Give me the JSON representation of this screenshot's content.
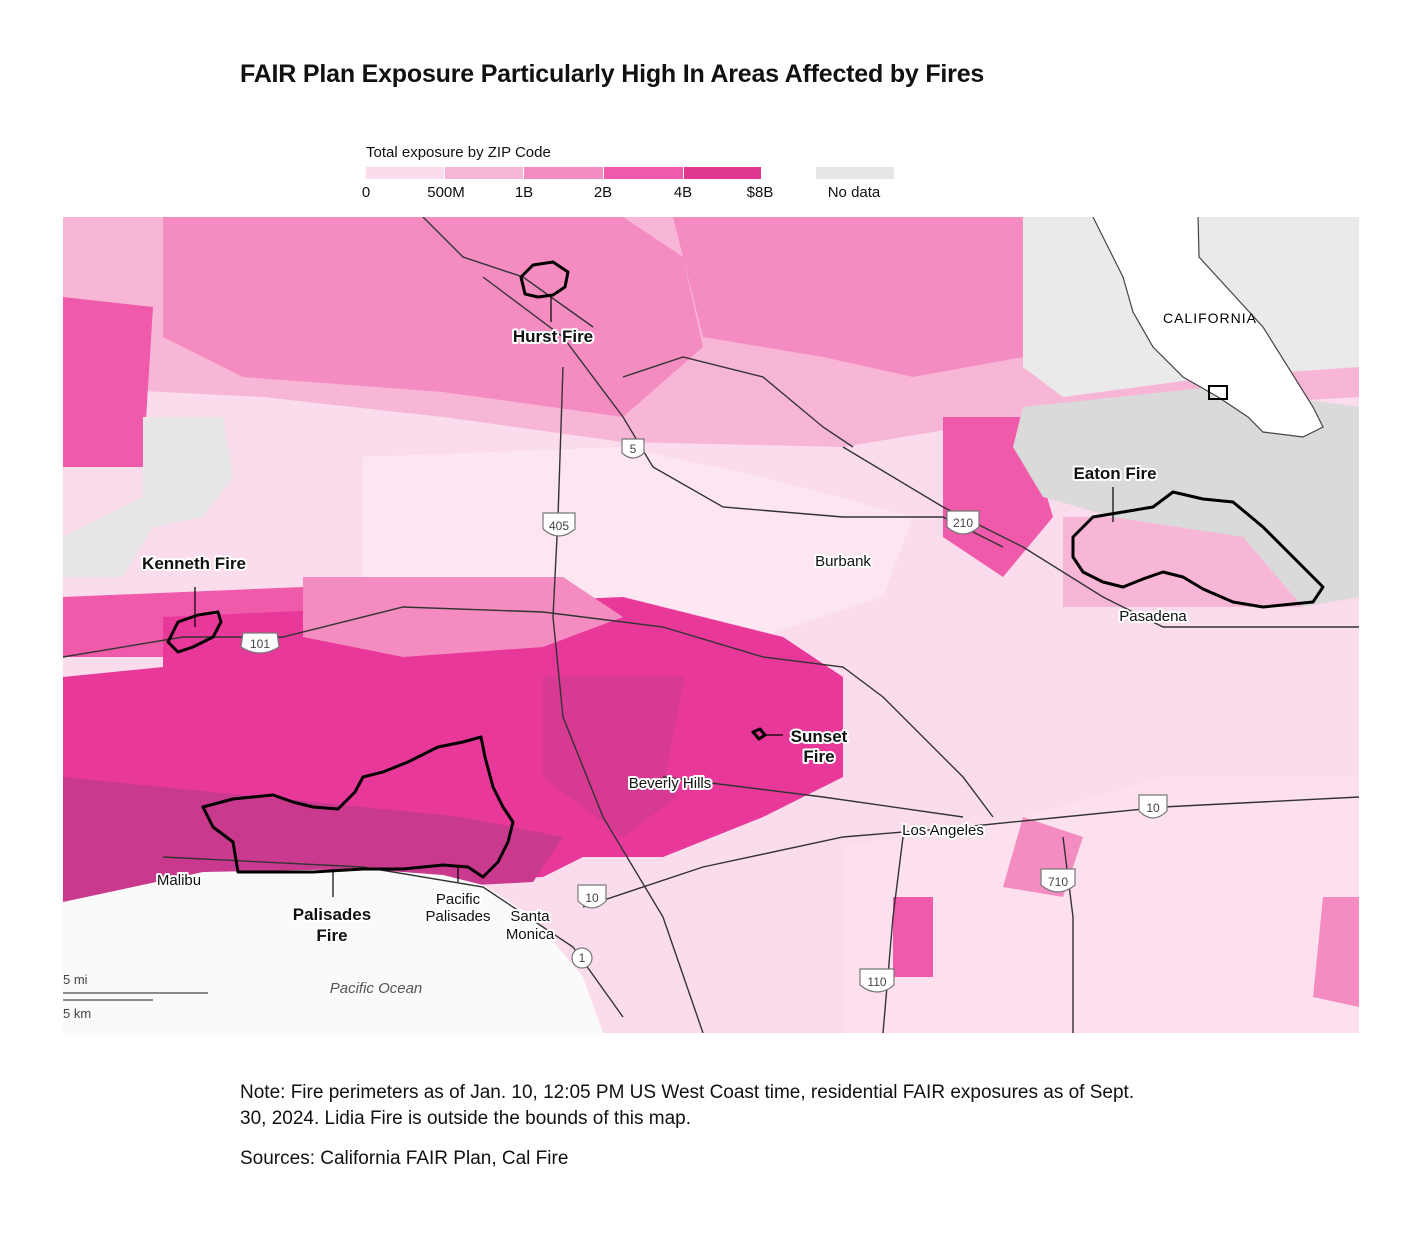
{
  "title": "FAIR Plan Exposure Particularly High In Areas Affected by Fires",
  "legend": {
    "title": "Total exposure by ZIP Code",
    "ticks": [
      "0",
      "500M",
      "1B",
      "2B",
      "4B",
      "$8B"
    ],
    "no_data_label": "No data",
    "colors": [
      "#fbdcec",
      "#f8b6d6",
      "#f48cc1",
      "#f05aaa",
      "#e0378f"
    ],
    "no_data_color": "#e6e6e6"
  },
  "fires": {
    "hurst": "Hurst Fire",
    "kenneth": "Kenneth Fire",
    "eaton": "Eaton Fire",
    "sunset_line1": "Sunset",
    "sunset_line2": "Fire",
    "palisades_line1": "Palisades",
    "palisades_line2": "Fire"
  },
  "places": {
    "burbank": "Burbank",
    "pasadena": "Pasadena",
    "beverly_hills": "Beverly Hills",
    "los_angeles": "Los Angeles",
    "malibu": "Malibu",
    "pacific_palisades_line1": "Pacific",
    "pacific_palisades_line2": "Palisades",
    "santa_monica_line1": "Santa",
    "santa_monica_line2": "Monica",
    "pacific_ocean": "Pacific Ocean"
  },
  "highways": {
    "i5": "5",
    "i405": "405",
    "i210": "210",
    "us101": "101",
    "i10_east": "10",
    "i10_west": "10",
    "i710": "710",
    "i110": "110",
    "ca1": "1"
  },
  "inset": {
    "label": "CALIFORNIA"
  },
  "scale": {
    "miles": "5 mi",
    "km": "5 km"
  },
  "note": "Note: Fire perimeters as of Jan. 10, 12:05 PM US West Coast time, residential FAIR exposures as of Sept. 30, 2024. Lidia Fire is outside the bounds of this map.",
  "sources": "Sources: California FAIR Plan, Cal Fire"
}
